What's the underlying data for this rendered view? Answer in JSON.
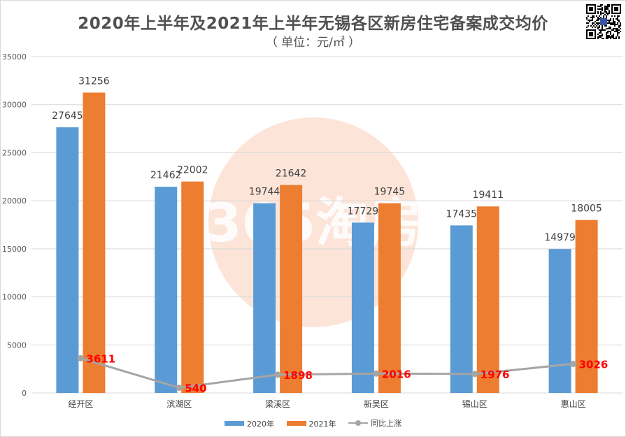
{
  "title": "2020年上半年及2021年上半年无锡各区新房住宅备案成交均价",
  "subtitle": "（ 单位：元/㎡ ）",
  "watermark": "365淘房",
  "colors": {
    "s2020": "#5b9bd5",
    "s2021": "#ed7d31",
    "yoy": "#a5a5a5",
    "yoy_label": "#ff0000",
    "grid": "#d9d9d9",
    "watermark": "#f9c9ad"
  },
  "chart_data": {
    "type": "bar",
    "title": "2020年上半年及2021年上半年无锡各区新房住宅备案成交均价",
    "subtitle": "（ 单位：元/㎡ ）",
    "categories": [
      "经开区",
      "滨湖区",
      "梁溪区",
      "新吴区",
      "锡山区",
      "惠山区"
    ],
    "series": [
      {
        "name": "2020年",
        "type": "bar",
        "values": [
          27645,
          21462,
          19744,
          17729,
          17435,
          14979
        ]
      },
      {
        "name": "2021年",
        "type": "bar",
        "values": [
          31256,
          22002,
          21642,
          19745,
          19411,
          18005
        ]
      },
      {
        "name": "同比上涨",
        "type": "line",
        "values": [
          3611,
          540,
          1898,
          2016,
          1976,
          3026
        ]
      }
    ],
    "ylim": [
      0,
      35000
    ],
    "yticks": [
      "0",
      "5000",
      "10000",
      "15000",
      "20000",
      "25000",
      "30000",
      "35000"
    ],
    "grid": true,
    "legend_position": "bottom"
  }
}
